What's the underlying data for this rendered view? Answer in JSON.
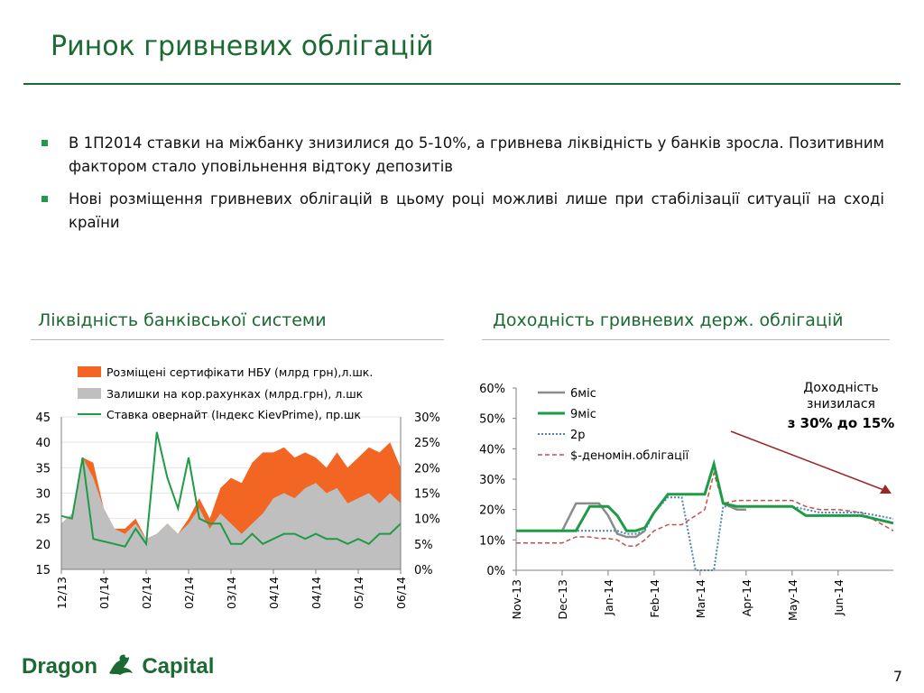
{
  "slide": {
    "title": "Ринок гривневих облігацій",
    "page_number": "7",
    "logo_left": "Dragon",
    "logo_right": "Capital",
    "bullets": [
      "В 1П2014 ставки на міжбанку знизилися до 5-10%, а гривнева ліквідність у банків зросла. Позитивним фактором стало уповільнення відтоку депозитів",
      "Нові розміщення гривневих облігацій в цьому році можливі лише при стабілізації ситуації на сході країни"
    ],
    "section_left": "Ліквідність банківської системи",
    "section_right": "Доходність гривневих держ. облігацій"
  },
  "colors": {
    "green": "#1a6a32",
    "orange": "#f26522",
    "gray": "#bfbfbf",
    "rate": "#1f9b46",
    "red_dash": "#c0504d",
    "blue_dot": "#4f81bd",
    "arrow": "#9c2626"
  },
  "chart_data": [
    {
      "type": "area",
      "title": "",
      "legend": [
        "Розміщені сертифікати НБУ (млрд грн),л.шк.",
        "Залишки на кор.рахунках (млрд.грн), л.шк",
        "Ставка овернайт (Індекс KievPrime), пр.шк"
      ],
      "x_ticks": [
        "12/13",
        "01/14",
        "02/14",
        "02/14",
        "03/14",
        "04/14",
        "04/14",
        "05/14",
        "06/14"
      ],
      "left_ticks": [
        "45",
        "40",
        "35",
        "30",
        "25",
        "20",
        "15"
      ],
      "right_ticks": [
        "30%",
        "25%",
        "20%",
        "15%",
        "10%",
        "5%",
        "0%"
      ],
      "ylim_left": [
        15,
        45
      ],
      "ylim_right": [
        0,
        30
      ],
      "x": [
        0,
        0.25,
        0.5,
        0.75,
        1,
        1.25,
        1.5,
        1.75,
        2,
        2.25,
        2.5,
        2.75,
        3,
        3.25,
        3.5,
        3.75,
        4,
        4.25,
        4.5,
        4.75,
        5,
        5.25,
        5.5,
        5.75,
        6,
        6.25,
        6.5,
        6.75,
        7,
        7.25,
        7.5,
        7.75,
        8
      ],
      "series": [
        {
          "name": "Залишки на кор.рахунках (млрд.грн), л.шк",
          "values": [
            24,
            26,
            37,
            33,
            27,
            23,
            22,
            24,
            21,
            22,
            24,
            22,
            24,
            27,
            23,
            26,
            24,
            22,
            24,
            26,
            29,
            30,
            29,
            31,
            32,
            30,
            31,
            28,
            29,
            30,
            28,
            30,
            28
          ]
        },
        {
          "name": "Розміщені сертифікати НБУ (млрд грн),л.шк.",
          "values": [
            24,
            26,
            37,
            36,
            27,
            23,
            23,
            25,
            21,
            22,
            24,
            22,
            25,
            29,
            25,
            31,
            33,
            32,
            36,
            38,
            38,
            39,
            37,
            38,
            37,
            35,
            38,
            35,
            37,
            39,
            38,
            40,
            35
          ]
        },
        {
          "name": "Ставка овернайт (Індекс KievPrime), пр.шк",
          "values": [
            10.5,
            10,
            22,
            6,
            5.5,
            5,
            4.5,
            8,
            5,
            27,
            18,
            12,
            22,
            10,
            9,
            9,
            5,
            5,
            7,
            5,
            6,
            7,
            7,
            6,
            7,
            6,
            6,
            5,
            6,
            5,
            7,
            7,
            9
          ]
        }
      ]
    },
    {
      "type": "line",
      "title": "",
      "x_ticks": [
        "Nov-13",
        "Dec-13",
        "Jan-14",
        "Feb-14",
        "Mar-14",
        "Apr-14",
        "May-14",
        "Jun-14"
      ],
      "y_ticks": [
        "60%",
        "50%",
        "40%",
        "30%",
        "20%",
        "10%",
        "0%"
      ],
      "ylim": [
        0,
        60
      ],
      "legend": [
        "6міс",
        "9міс",
        "2р",
        "$-деномін.облігації"
      ],
      "annotation": [
        "Доходність",
        "знизилася",
        "з 30% до 15%"
      ],
      "x": [
        0,
        0.5,
        1,
        1.3,
        1.6,
        1.8,
        2,
        2.2,
        2.4,
        2.6,
        2.8,
        3,
        3.3,
        3.6,
        3.9,
        4.1,
        4.3,
        4.5,
        4.8,
        5,
        5.5,
        6,
        6.3,
        6.6,
        7,
        7.5,
        8.2
      ],
      "series": [
        {
          "name": "6міс",
          "values": [
            13,
            13,
            13,
            22,
            22,
            22,
            18,
            12,
            11,
            11,
            13,
            null,
            null,
            null,
            null,
            null,
            null,
            null,
            null,
            null,
            null,
            null,
            null,
            null,
            null,
            null,
            null
          ]
        },
        {
          "name": "6міс-tail",
          "values": [
            null,
            null,
            null,
            null,
            null,
            null,
            null,
            null,
            null,
            null,
            null,
            null,
            null,
            null,
            null,
            null,
            null,
            22,
            20,
            20,
            null,
            null,
            null,
            null,
            null,
            null,
            null
          ]
        },
        {
          "name": "9міс",
          "values": [
            13,
            13,
            13,
            13,
            21,
            21,
            21,
            18,
            13,
            13,
            14,
            19,
            25,
            25,
            25,
            25,
            35,
            22,
            21,
            21,
            21,
            21,
            18,
            18,
            18,
            18,
            15.5
          ]
        },
        {
          "name": "2р",
          "values": [
            13,
            13,
            13,
            13,
            13,
            13,
            13,
            13,
            12,
            12,
            13,
            19,
            24,
            24,
            0,
            0,
            0,
            21,
            21,
            21,
            21,
            21,
            20,
            19,
            19,
            19,
            17
          ]
        },
        {
          "name": "$-деномін.облігації",
          "values": [
            9,
            9,
            9,
            11,
            11,
            10.5,
            10.5,
            10,
            8,
            8,
            10,
            13,
            15,
            15,
            18,
            20,
            32,
            22,
            23,
            23,
            23,
            23,
            21,
            20,
            20,
            19,
            13
          ]
        }
      ]
    }
  ]
}
